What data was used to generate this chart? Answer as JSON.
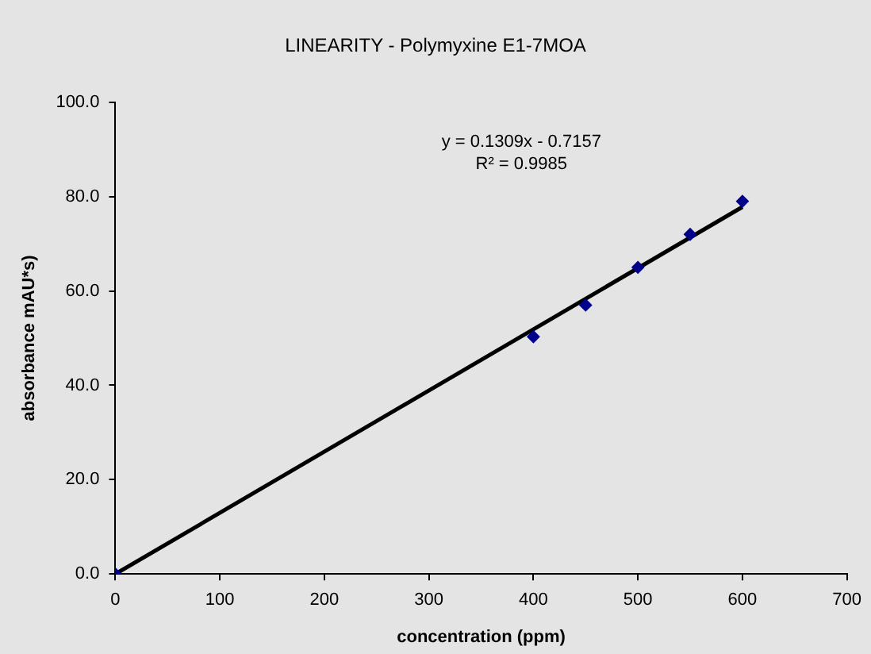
{
  "chart_data": {
    "type": "scatter",
    "title": "LINEARITY - Polymyxine E1-7MOA",
    "xlabel": "concentration (ppm)",
    "ylabel": "absorbance mAU*s)",
    "x": [
      0,
      400,
      450,
      500,
      550,
      600
    ],
    "series": [
      {
        "color": "#00008b",
        "marker": "diamond",
        "values": [
          0,
          50.3,
          57,
          65,
          72,
          79
        ]
      },
      {
        "type": "line",
        "color": "#000000",
        "marker": "none",
        "line_style": "solid",
        "x": [
          0,
          600
        ],
        "values": [
          0,
          77.8
        ]
      }
    ],
    "xlim": [
      0,
      700
    ],
    "xticks": [
      0,
      100,
      200,
      300,
      400,
      500,
      600,
      700
    ],
    "ylim": [
      0,
      100
    ],
    "yticks": [
      {
        "value": 0,
        "label": "0.0"
      },
      {
        "value": 20,
        "label": "20.0"
      },
      {
        "value": 40,
        "label": "40.0"
      },
      {
        "value": 60,
        "label": "60.0"
      },
      {
        "value": 80,
        "label": "80.0"
      },
      {
        "value": 100,
        "label": "100.0"
      }
    ],
    "annotations": [
      "y = 0.1309x - 0.7157",
      "R² = 0.9985"
    ],
    "grid": false,
    "legend": false
  }
}
